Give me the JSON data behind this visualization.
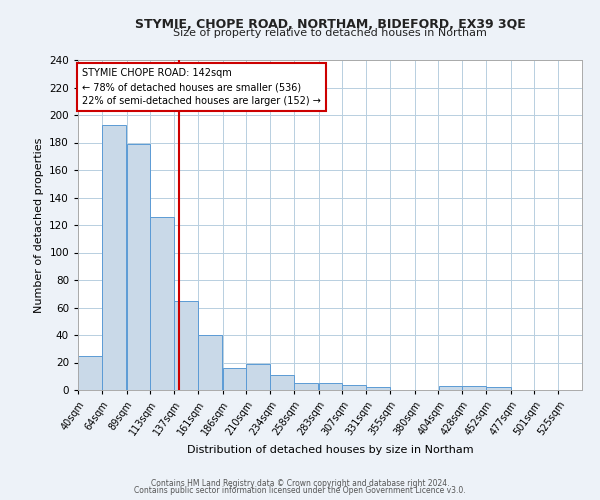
{
  "title": "STYMIE, CHOPE ROAD, NORTHAM, BIDEFORD, EX39 3QE",
  "subtitle": "Size of property relative to detached houses in Northam",
  "xlabel": "Distribution of detached houses by size in Northam",
  "ylabel": "Number of detached properties",
  "bin_labels": [
    "40sqm",
    "64sqm",
    "89sqm",
    "113sqm",
    "137sqm",
    "161sqm",
    "186sqm",
    "210sqm",
    "234sqm",
    "258sqm",
    "283sqm",
    "307sqm",
    "331sqm",
    "355sqm",
    "380sqm",
    "404sqm",
    "428sqm",
    "452sqm",
    "477sqm",
    "501sqm",
    "525sqm"
  ],
  "bar_values": [
    25,
    193,
    179,
    126,
    65,
    40,
    16,
    19,
    11,
    5,
    5,
    4,
    2,
    0,
    0,
    3,
    3,
    2,
    0,
    0,
    0
  ],
  "bar_color": "#c9d9e8",
  "bar_edge_color": "#5b9bd5",
  "property_label": "STYMIE CHOPE ROAD: 142sqm",
  "annotation_line1": "← 78% of detached houses are smaller (536)",
  "annotation_line2": "22% of semi-detached houses are larger (152) →",
  "vline_color": "#cc0000",
  "vline_x": 142,
  "annotation_box_color": "#cc0000",
  "ylim": [
    0,
    240
  ],
  "yticks": [
    0,
    20,
    40,
    60,
    80,
    100,
    120,
    140,
    160,
    180,
    200,
    220,
    240
  ],
  "bin_edges": [
    40,
    64,
    89,
    113,
    137,
    161,
    186,
    210,
    234,
    258,
    283,
    307,
    331,
    355,
    380,
    404,
    428,
    452,
    477,
    501,
    525,
    549
  ],
  "footer_line1": "Contains HM Land Registry data © Crown copyright and database right 2024.",
  "footer_line2": "Contains public sector information licensed under the Open Government Licence v3.0.",
  "bg_color": "#edf2f8",
  "plot_bg_color": "#ffffff"
}
